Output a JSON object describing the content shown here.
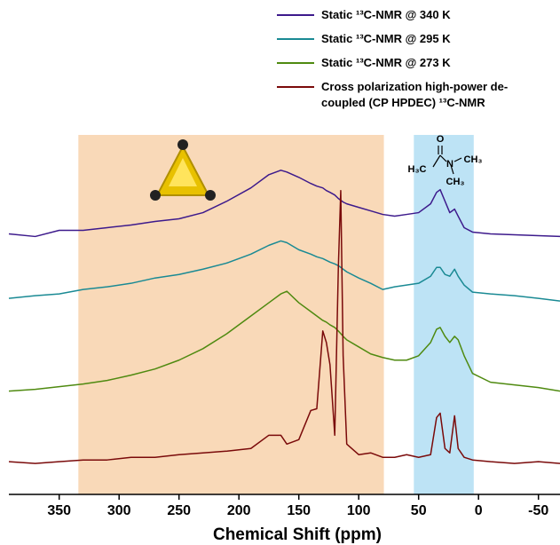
{
  "chart_data": {
    "type": "line",
    "xlabel": "Chemical Shift (ppm)",
    "xlim": [
      392,
      -68
    ],
    "xticks": [
      350,
      300,
      250,
      200,
      150,
      100,
      50,
      0,
      -50
    ],
    "ylim": [
      0,
      407
    ],
    "regions": [
      {
        "xlim": [
          334,
          79
        ],
        "color": "#f9d9b8"
      },
      {
        "xlim": [
          54,
          4
        ],
        "color": "#bde3f5"
      }
    ],
    "molecule_labels": [
      "O",
      "N",
      "H₃C",
      "CH₃",
      "CH₃"
    ],
    "x": [
      392,
      370,
      350,
      330,
      310,
      290,
      270,
      250,
      230,
      210,
      190,
      175,
      165,
      160,
      150,
      140,
      135,
      130,
      127,
      124,
      120,
      117,
      115,
      113,
      110,
      100,
      90,
      80,
      70,
      60,
      50,
      40,
      35,
      32,
      28,
      24,
      20,
      17,
      12,
      5,
      -10,
      -30,
      -50,
      -68
    ],
    "series": [
      {
        "name": "Static ¹³C-NMR @ 340 K",
        "color": "#3d1a8c",
        "values": [
          295,
          292,
          299,
          299,
          302,
          305,
          309,
          312,
          319,
          332,
          347,
          362,
          367,
          365,
          359,
          352,
          349,
          347,
          344,
          342,
          339,
          335,
          333,
          331,
          329,
          325,
          321,
          317,
          315,
          317,
          319,
          329,
          342,
          345,
          332,
          319,
          323,
          315,
          302,
          297,
          295,
          294,
          293,
          292
        ]
      },
      {
        "name": "Static ¹³C-NMR @ 295 K",
        "color": "#1a8a94",
        "values": [
          222,
          225,
          227,
          232,
          235,
          239,
          245,
          249,
          255,
          262,
          272,
          282,
          287,
          285,
          277,
          272,
          269,
          267,
          265,
          263,
          261,
          259,
          257,
          255,
          252,
          245,
          239,
          232,
          235,
          237,
          239,
          247,
          257,
          257,
          249,
          247,
          255,
          247,
          237,
          229,
          227,
          225,
          222,
          219
        ]
      },
      {
        "name": "Static ¹³C-NMR @ 273 K",
        "color": "#4f8a10",
        "values": [
          117,
          119,
          122,
          125,
          129,
          135,
          142,
          152,
          165,
          182,
          202,
          217,
          227,
          230,
          217,
          207,
          202,
          197,
          195,
          192,
          189,
          185,
          182,
          179,
          175,
          167,
          159,
          155,
          152,
          152,
          157,
          172,
          187,
          189,
          179,
          172,
          179,
          175,
          157,
          137,
          127,
          124,
          121,
          117
        ]
      },
      {
        "name": "Cross polarization high-power de-coupled (CP HPDEC) ¹³C-NMR",
        "color": "#7a0a0a",
        "values": [
          37,
          35,
          37,
          39,
          39,
          42,
          42,
          45,
          47,
          49,
          52,
          67,
          67,
          57,
          62,
          95,
          97,
          185,
          172,
          147,
          67,
          257,
          344,
          157,
          57,
          45,
          47,
          42,
          42,
          45,
          42,
          45,
          87,
          92,
          52,
          47,
          89,
          52,
          42,
          39,
          37,
          35,
          37,
          35
        ]
      }
    ]
  }
}
